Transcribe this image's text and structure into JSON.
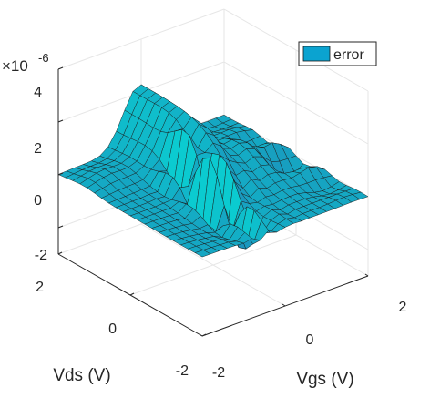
{
  "chart_data": {
    "type": "surface",
    "xlabel": "Vgs (V)",
    "ylabel": "Vds (V)",
    "zlabel": "",
    "xlim": [
      -2,
      2
    ],
    "ylim": [
      -2,
      2
    ],
    "zlim": [
      -3,
      4
    ],
    "xticks": [
      "-2",
      "0",
      "2"
    ],
    "yticks": [
      "-2",
      "0",
      "2"
    ],
    "zticks": [
      "-2",
      "0",
      "2",
      "4"
    ],
    "zscale_exponent": "×10",
    "zscale_power": "-6",
    "grid": true,
    "legend_position": "top-right",
    "series": [
      {
        "name": "error",
        "color": "#0ba3d0",
        "grid_size": [
          21,
          21
        ],
        "units": "x10^-6",
        "features": [
          {
            "kind": "ridge",
            "description": "smooth hump near Vgs≈0, peak ≈2.3"
          },
          {
            "kind": "spikes",
            "description": "sharp oscillating spikes near Vgs≈-0.3, Vds≈-0.5, range ≈-2.5 to 1.5"
          },
          {
            "kind": "plateau",
            "description": "flat ≈0 region for negative Vgs"
          }
        ]
      }
    ]
  }
}
